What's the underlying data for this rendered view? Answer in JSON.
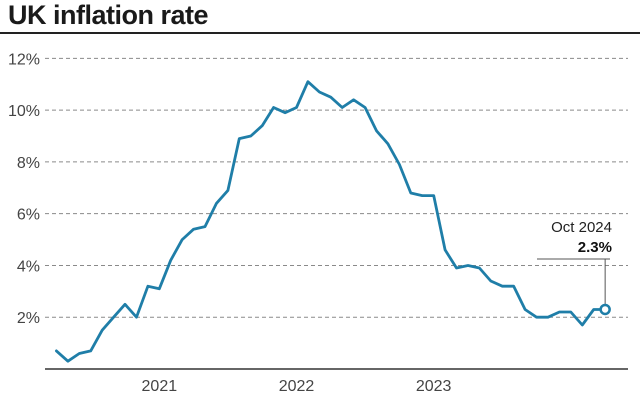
{
  "chart_data": {
    "type": "line",
    "title": "UK inflation rate",
    "xlabel": "",
    "ylabel": "",
    "y_ticks": [
      "2%",
      "4%",
      "6%",
      "8%",
      "10%",
      "12%"
    ],
    "y_tick_values": [
      2,
      4,
      6,
      8,
      10,
      12
    ],
    "ylim": [
      0,
      12.4
    ],
    "x_tick_labels": [
      "2021",
      "2022",
      "2023"
    ],
    "xlim": [
      "2020-09",
      "2024-12"
    ],
    "grid": "horizontal dashed",
    "line_color": "#1f7ea8",
    "series": [
      {
        "x": [
          "2020-10",
          "2020-11",
          "2020-12",
          "2021-01",
          "2021-02",
          "2021-03",
          "2021-04",
          "2021-05",
          "2021-06",
          "2021-07",
          "2021-08",
          "2021-09",
          "2021-10",
          "2021-11",
          "2021-12",
          "2022-01",
          "2022-02",
          "2022-03",
          "2022-04",
          "2022-05",
          "2022-06",
          "2022-07",
          "2022-08",
          "2022-09",
          "2022-10",
          "2022-11",
          "2022-12",
          "2023-01",
          "2023-02",
          "2023-03",
          "2023-04",
          "2023-05",
          "2023-06",
          "2023-07",
          "2023-08",
          "2023-09",
          "2023-10",
          "2023-11",
          "2023-12",
          "2024-01",
          "2024-02",
          "2024-03",
          "2024-04",
          "2024-05",
          "2024-06",
          "2024-07",
          "2024-08",
          "2024-09",
          "2024-10"
        ],
        "values": [
          0.7,
          0.3,
          0.6,
          0.7,
          1.5,
          2.0,
          2.5,
          2.0,
          3.2,
          3.1,
          4.2,
          5.0,
          5.4,
          5.5,
          6.4,
          6.9,
          8.9,
          9.0,
          9.4,
          10.1,
          9.9,
          10.1,
          11.1,
          10.7,
          10.5,
          10.1,
          10.4,
          10.1,
          9.2,
          8.7,
          7.9,
          6.8,
          6.7,
          6.7,
          4.6,
          3.9,
          4.0,
          3.9,
          3.4,
          3.2,
          3.2,
          2.3,
          2.0,
          2.0,
          2.2,
          2.2,
          1.7,
          2.3,
          2.3
        ]
      }
    ],
    "annotation": {
      "label": "Oct 2024",
      "value_label": "2.3%"
    }
  }
}
